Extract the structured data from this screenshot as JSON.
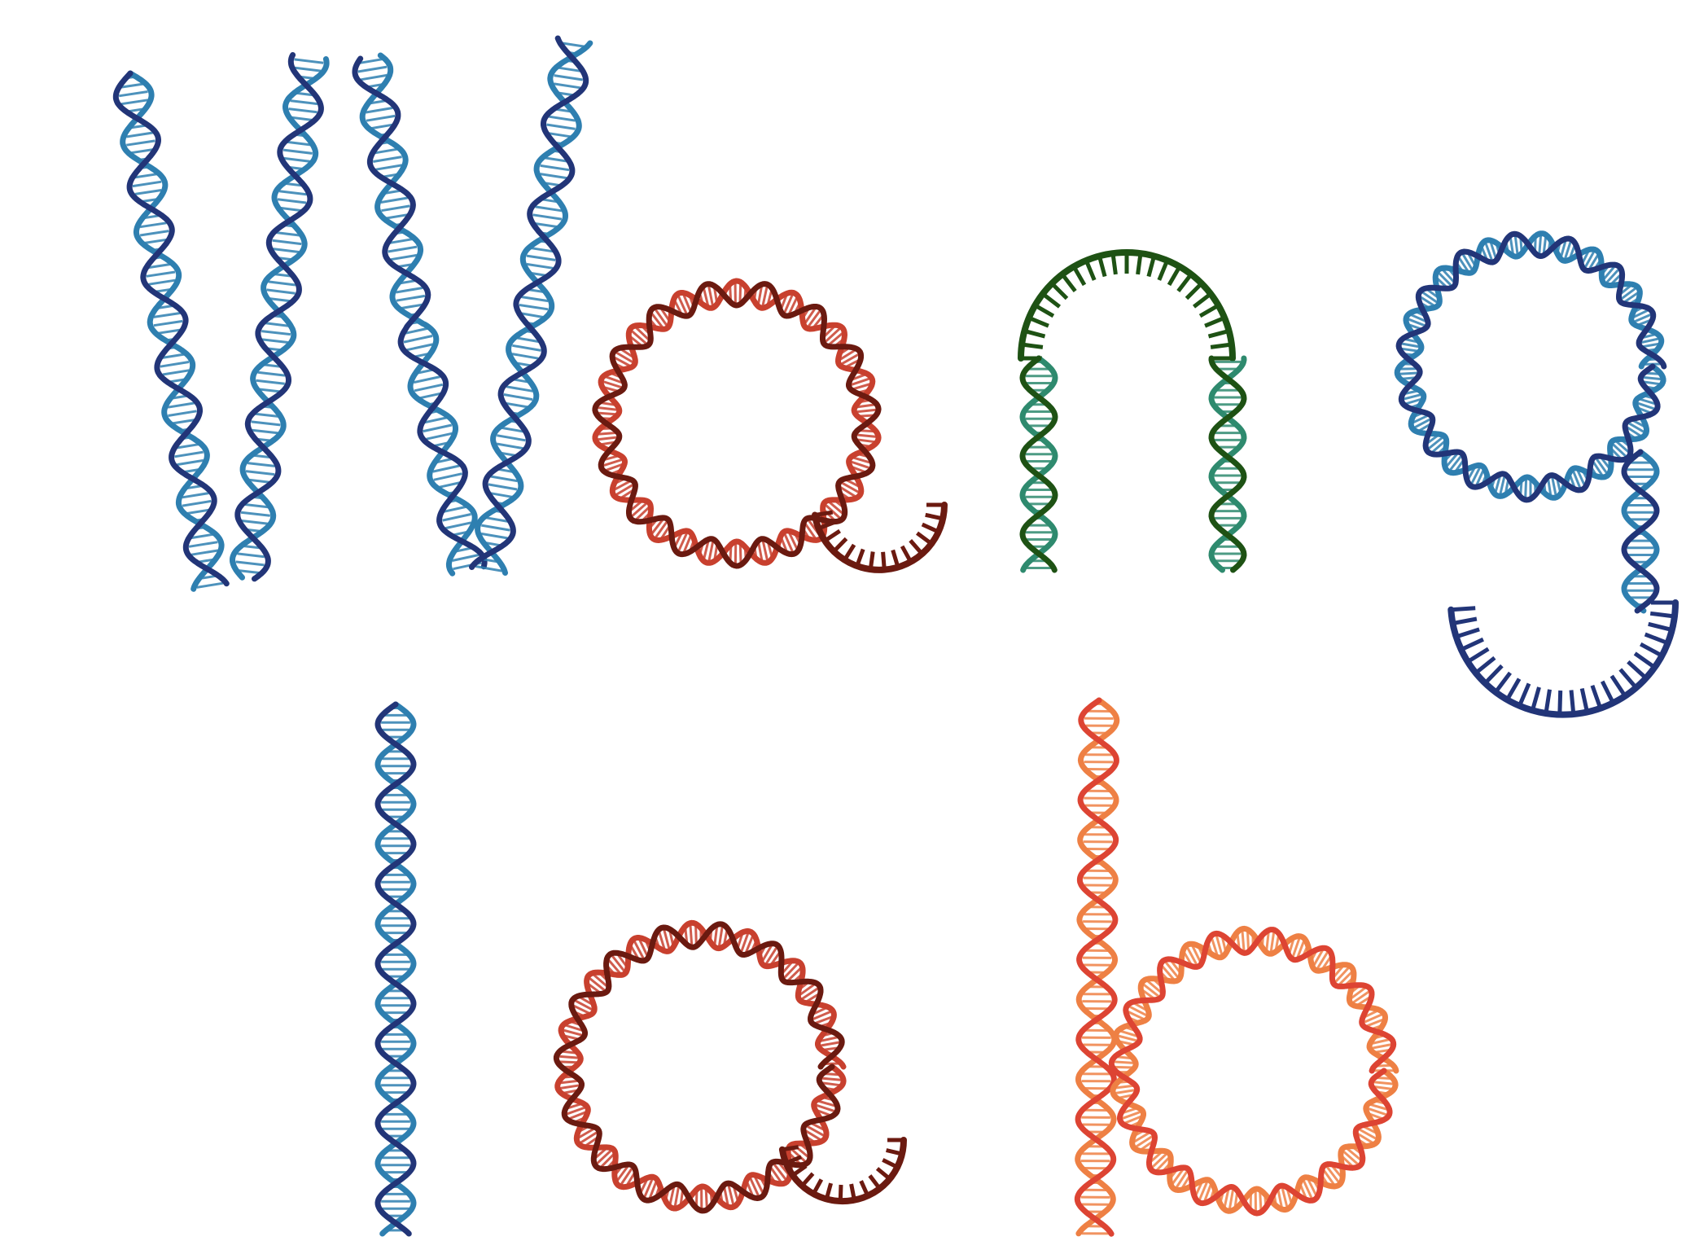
{
  "logo": {
    "alt": "Wang lab",
    "colors": {
      "blue_dark": "#223578",
      "blue_light": "#2E7FB0",
      "red_dark": "#6B1A10",
      "red_light": "#C8402E",
      "green_dark": "#1E5214",
      "green_light": "#2E8A6E",
      "orange_red": "#DD4433",
      "orange_light": "#EE8044"
    },
    "words": [
      {
        "text": "Wang",
        "letters": [
          {
            "char": "W",
            "shape": "dna-helix-zigzag",
            "palette": "blue"
          },
          {
            "char": "a",
            "shape": "dna-ring-with-half-ladder",
            "palette": "red"
          },
          {
            "char": "n",
            "shape": "dna-arch-with-two-helix-legs",
            "palette": "green"
          },
          {
            "char": "g",
            "shape": "dna-ring-with-helix-tail-and-hook",
            "palette": "blue"
          }
        ]
      },
      {
        "text": "lab",
        "letters": [
          {
            "char": "l",
            "shape": "dna-helix-vertical",
            "palette": "blue"
          },
          {
            "char": "a",
            "shape": "dna-ring-with-half-ladder",
            "palette": "red"
          },
          {
            "char": "b",
            "shape": "dna-helix-with-ring",
            "palette": "orange"
          }
        ]
      }
    ]
  }
}
